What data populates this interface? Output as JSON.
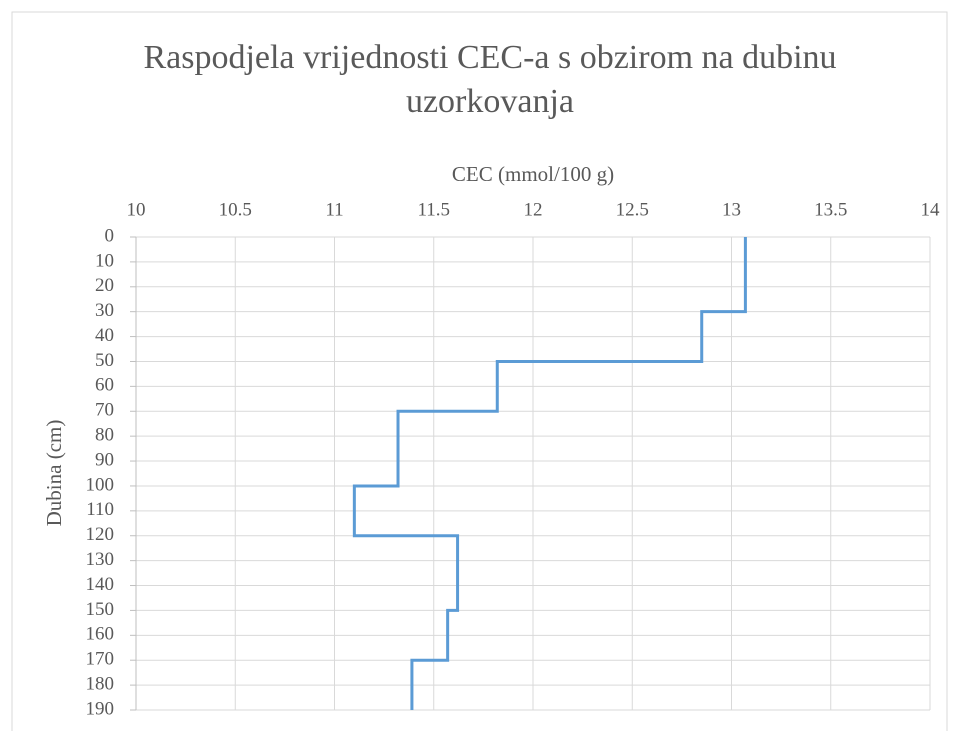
{
  "chart_data": {
    "type": "step-line",
    "title": "Raspodjela vrijednosti CEC-a s obzirom na dubinu uzorkovanja",
    "x_label": "CEC (mmol/100 g)",
    "y_label": "Dubina (cm)",
    "xlim": [
      10,
      14
    ],
    "xticks": [
      10,
      10.5,
      11,
      11.5,
      12,
      12.5,
      13,
      13.5,
      14
    ],
    "ylim": [
      0,
      190
    ],
    "yticks": [
      0,
      10,
      20,
      30,
      40,
      50,
      60,
      70,
      80,
      90,
      100,
      110,
      120,
      130,
      140,
      150,
      160,
      170,
      180,
      190
    ],
    "y_inverted": true,
    "grid": true,
    "series": [
      {
        "color": "#5b9bd5",
        "values": [
          13.07,
          13.07,
          12.85,
          12.85,
          11.82,
          11.82,
          11.32,
          11.32,
          11.1,
          11.1,
          11.62,
          11.62,
          11.57,
          11.57,
          11.39,
          11.39
        ],
        "y": [
          0,
          30,
          30,
          50,
          50,
          70,
          70,
          100,
          100,
          120,
          120,
          150,
          150,
          170,
          170,
          190
        ]
      }
    ]
  }
}
